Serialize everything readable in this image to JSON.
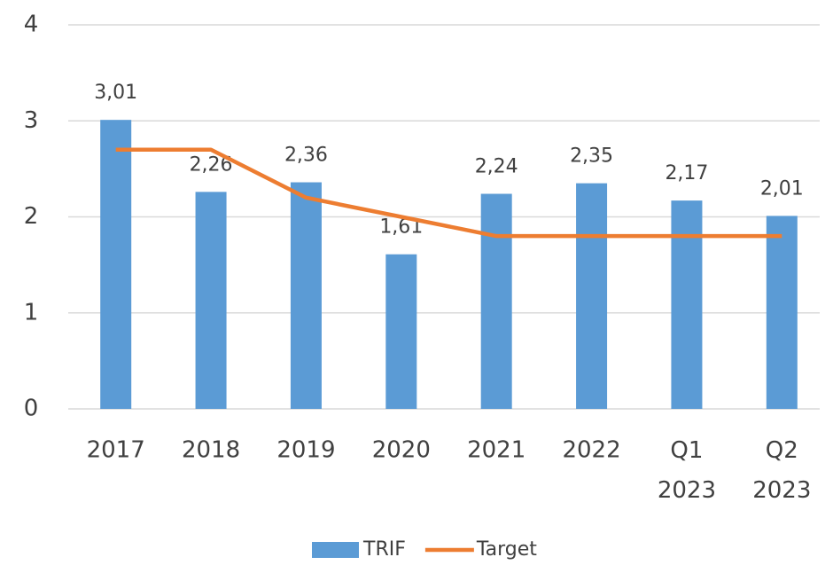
{
  "chart_data": {
    "type": "bar_line",
    "categories": [
      "2017",
      "2018",
      "2019",
      "2020",
      "2021",
      "2022",
      "Q1 2023",
      "Q2 2023"
    ],
    "series": [
      {
        "name": "TRIF",
        "type": "bar",
        "color": "#5b9bd5",
        "values": [
          3.01,
          2.26,
          2.36,
          1.61,
          2.24,
          2.35,
          2.17,
          2.01
        ],
        "value_labels": [
          "3,01",
          "2,26",
          "2,36",
          "1,61",
          "2,24",
          "2,35",
          "2,17",
          "2,01"
        ]
      },
      {
        "name": "Target",
        "type": "line",
        "color": "#ed7d31",
        "values": [
          2.7,
          2.7,
          2.2,
          2.0,
          1.8,
          1.8,
          1.8,
          1.8
        ]
      }
    ],
    "ylim": [
      0,
      4
    ],
    "yticks": [
      0,
      1,
      2,
      3,
      4
    ],
    "grid": true,
    "legend": "bottom"
  }
}
